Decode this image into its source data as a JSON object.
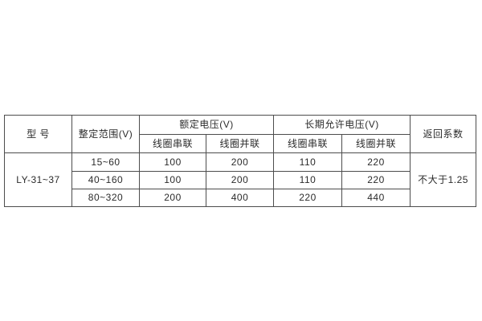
{
  "table": {
    "headers": {
      "model": "型 号",
      "setting_range": "整定范围(V)",
      "rated_voltage": "额定电压(V)",
      "long_term_voltage": "长期允许电压(V)",
      "coil_series": "线圈串联",
      "coil_parallel": "线圈并联",
      "return_coefficient": "返回系数"
    },
    "model_value": "LY-31~37",
    "return_coefficient_value": "不大于1.25",
    "rows": [
      {
        "range": "15~60",
        "rated_series": "100",
        "rated_parallel": "200",
        "long_series": "110",
        "long_parallel": "220"
      },
      {
        "range": "40~160",
        "rated_series": "100",
        "rated_parallel": "200",
        "long_series": "110",
        "long_parallel": "220"
      },
      {
        "range": "80~320",
        "rated_series": "200",
        "rated_parallel": "400",
        "long_series": "220",
        "long_parallel": "440"
      }
    ]
  },
  "colors": {
    "border": "#4d4d4d",
    "text": "#2b2b2b",
    "background": "#ffffff"
  }
}
